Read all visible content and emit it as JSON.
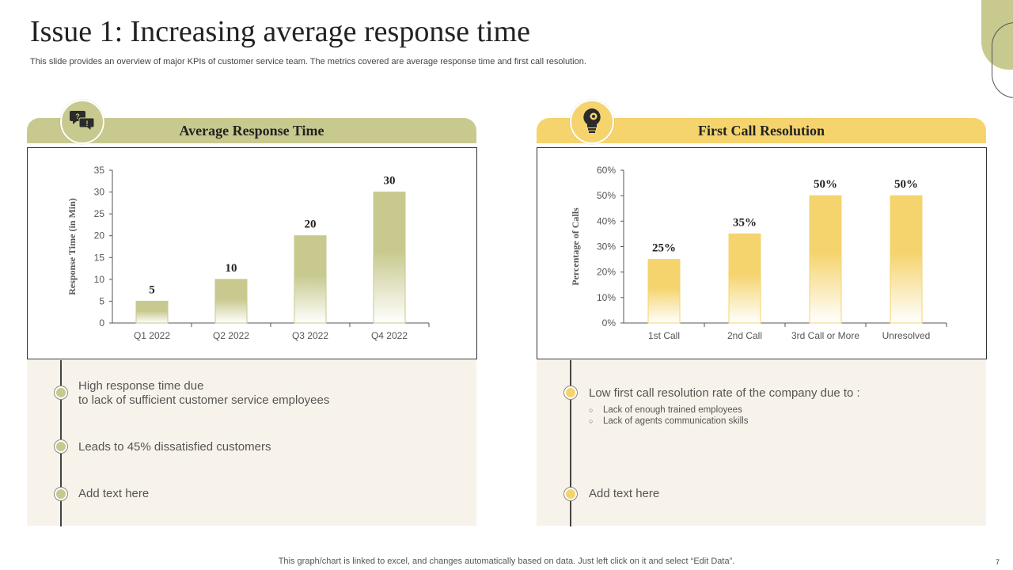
{
  "slide": {
    "title": "Issue 1: Increasing average response time",
    "subtitle": "This slide provides an overview of major KPIs of customer service team. The metrics covered are average response time and first call resolution.",
    "footnote": "This graph/chart is linked to excel,  and changes automatically based on data. Just left click on it and select “Edit Data”.",
    "page_number": "7"
  },
  "colors": {
    "olive": "#c8c98e",
    "gold": "#f5d46e",
    "panel_bg": "#f8f3ea"
  },
  "left_panel": {
    "header": "Average Response Time",
    "icon": "speech-bubbles-icon",
    "bullets": [
      {
        "text": "High response time due\nto lack of sufficient customer service employees"
      },
      {
        "text": "Leads to 45% dissatisfied customers"
      },
      {
        "text": "Add text here"
      }
    ]
  },
  "right_panel": {
    "header": "First Call Resolution",
    "icon": "lightbulb-gear-icon",
    "bullets": [
      {
        "text": "Low first call resolution rate of the company due to :"
      },
      {
        "text": "Add text here"
      }
    ],
    "sub_items": [
      "Lack of enough trained employees",
      "Lack of agents communication skills"
    ]
  },
  "chart_data": [
    {
      "type": "bar",
      "categories": [
        "Q1 2022",
        "Q2 2022",
        "Q3 2022",
        "Q4 2022"
      ],
      "values": [
        5,
        10,
        20,
        30
      ],
      "data_labels": [
        "5",
        "10",
        "20",
        "30"
      ],
      "ylabel": "Response Time (in Min)",
      "ylim": [
        0,
        35
      ],
      "yticks": [
        "0",
        "5",
        "10",
        "15",
        "20",
        "25",
        "30",
        "35"
      ],
      "ytick_values": [
        0,
        5,
        10,
        15,
        20,
        25,
        30,
        35
      ],
      "color": "#c8c98e",
      "grid": false
    },
    {
      "type": "bar",
      "categories": [
        "1st Call",
        "2nd Call",
        "3rd Call or More",
        "Unresolved"
      ],
      "values": [
        25,
        35,
        50,
        50
      ],
      "data_labels": [
        "25%",
        "35%",
        "50%",
        "50%"
      ],
      "ylabel": "Percentage of Calls",
      "ylim": [
        0,
        60
      ],
      "yticks": [
        "0%",
        "10%",
        "20%",
        "30%",
        "40%",
        "50%",
        "60%"
      ],
      "ytick_values": [
        0,
        10,
        20,
        30,
        40,
        50,
        60
      ],
      "color": "#f5d46e",
      "grid": false
    }
  ]
}
